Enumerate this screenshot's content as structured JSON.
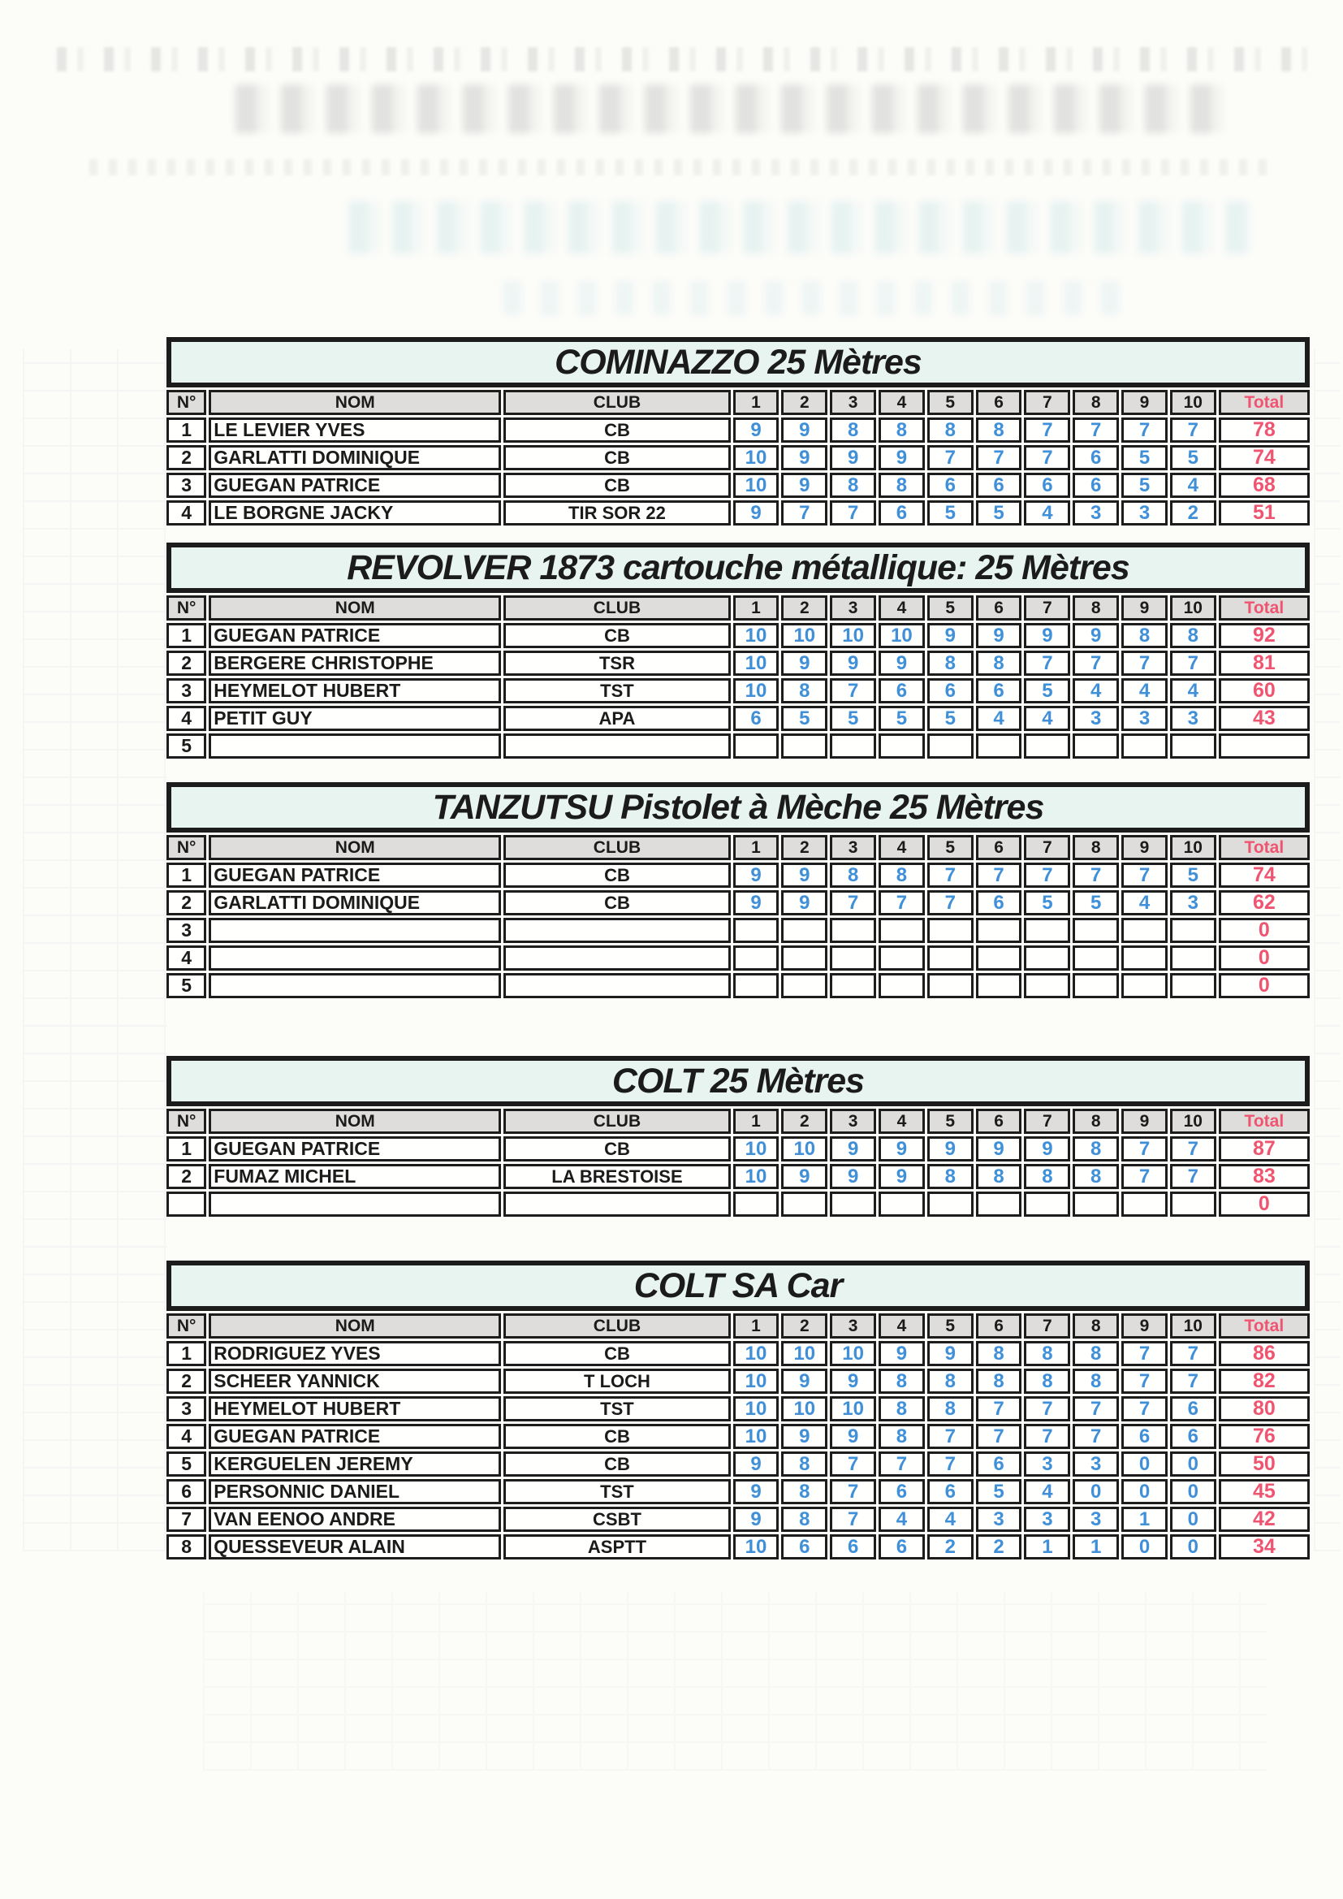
{
  "document": {
    "kind": "scanned shooting results sheet"
  },
  "colors": {
    "score_blue": "#3f90d8",
    "total_rose": "#ef5570",
    "title_band_bg": "#e7f4f0",
    "header_bg": "#dedddb",
    "grid_border": "#1d1d1d"
  },
  "columns": {
    "num": "N°",
    "name": "NOM",
    "club": "CLUB",
    "shots": [
      "1",
      "2",
      "3",
      "4",
      "5",
      "6",
      "7",
      "8",
      "9",
      "10"
    ],
    "total": "Total"
  },
  "tables": [
    {
      "title": "COMINAZZO 25 Mètres",
      "rows": [
        {
          "num": "1",
          "name": "LE LEVIER YVES",
          "club": "CB",
          "shots": [
            9,
            9,
            8,
            8,
            8,
            8,
            7,
            7,
            7,
            7
          ],
          "total": 78
        },
        {
          "num": "2",
          "name": "GARLATTI DOMINIQUE",
          "club": "CB",
          "shots": [
            10,
            9,
            9,
            9,
            7,
            7,
            7,
            6,
            5,
            5
          ],
          "total": 74
        },
        {
          "num": "3",
          "name": "GUEGAN PATRICE",
          "club": "CB",
          "shots": [
            10,
            9,
            8,
            8,
            6,
            6,
            6,
            6,
            5,
            4
          ],
          "total": 68
        },
        {
          "num": "4",
          "name": "LE BORGNE JACKY",
          "club": "TIR SOR 22",
          "shots": [
            9,
            7,
            7,
            6,
            5,
            5,
            4,
            3,
            3,
            2
          ],
          "total": 51
        }
      ]
    },
    {
      "title": "REVOLVER 1873 cartouche métallique: 25 Mètres",
      "rows": [
        {
          "num": "1",
          "name": "GUEGAN PATRICE",
          "club": "CB",
          "shots": [
            10,
            10,
            10,
            10,
            9,
            9,
            9,
            9,
            8,
            8
          ],
          "total": 92
        },
        {
          "num": "2",
          "name": "BERGERE CHRISTOPHE",
          "club": "TSR",
          "shots": [
            10,
            9,
            9,
            9,
            8,
            8,
            7,
            7,
            7,
            7
          ],
          "total": 81
        },
        {
          "num": "3",
          "name": "HEYMELOT HUBERT",
          "club": "TST",
          "shots": [
            10,
            8,
            7,
            6,
            6,
            6,
            5,
            4,
            4,
            4
          ],
          "total": 60
        },
        {
          "num": "4",
          "name": "PETIT GUY",
          "club": "APA",
          "shots": [
            6,
            5,
            5,
            5,
            5,
            4,
            4,
            3,
            3,
            3
          ],
          "total": 43
        },
        {
          "num": "5",
          "name": "",
          "club": "",
          "shots": [
            "",
            "",
            "",
            "",
            "",
            "",
            "",
            "",
            "",
            ""
          ],
          "total": ""
        }
      ]
    },
    {
      "title": "TANZUTSU Pistolet à Mèche 25 Mètres",
      "rows": [
        {
          "num": "1",
          "name": "GUEGAN PATRICE",
          "club": "CB",
          "shots": [
            9,
            9,
            8,
            8,
            7,
            7,
            7,
            7,
            7,
            5
          ],
          "total": 74
        },
        {
          "num": "2",
          "name": "GARLATTI DOMINIQUE",
          "club": "CB",
          "shots": [
            9,
            9,
            7,
            7,
            7,
            6,
            5,
            5,
            4,
            3
          ],
          "total": 62
        },
        {
          "num": "3",
          "name": "",
          "club": "",
          "shots": [
            "",
            "",
            "",
            "",
            "",
            "",
            "",
            "",
            "",
            ""
          ],
          "total": 0
        },
        {
          "num": "4",
          "name": "",
          "club": "",
          "shots": [
            "",
            "",
            "",
            "",
            "",
            "",
            "",
            "",
            "",
            ""
          ],
          "total": 0
        },
        {
          "num": "5",
          "name": "",
          "club": "",
          "shots": [
            "",
            "",
            "",
            "",
            "",
            "",
            "",
            "",
            "",
            ""
          ],
          "total": 0
        }
      ]
    },
    {
      "title": "COLT 25 Mètres",
      "rows": [
        {
          "num": "1",
          "name": "GUEGAN PATRICE",
          "club": "CB",
          "shots": [
            10,
            10,
            9,
            9,
            9,
            9,
            9,
            8,
            7,
            7
          ],
          "total": 87
        },
        {
          "num": "2",
          "name": "FUMAZ MICHEL",
          "club": "LA BRESTOISE",
          "shots": [
            10,
            9,
            9,
            9,
            8,
            8,
            8,
            8,
            7,
            7
          ],
          "total": 83
        },
        {
          "num": "",
          "name": "",
          "club": "",
          "shots": [
            "",
            "",
            "",
            "",
            "",
            "",
            "",
            "",
            "",
            ""
          ],
          "total": 0
        }
      ]
    },
    {
      "title": "COLT SA Car",
      "rows": [
        {
          "num": "1",
          "name": "RODRIGUEZ YVES",
          "club": "CB",
          "shots": [
            10,
            10,
            10,
            9,
            9,
            8,
            8,
            8,
            7,
            7
          ],
          "total": 86
        },
        {
          "num": "2",
          "name": "SCHEER YANNICK",
          "club": "T LOCH",
          "shots": [
            10,
            9,
            9,
            8,
            8,
            8,
            8,
            8,
            7,
            7
          ],
          "total": 82
        },
        {
          "num": "3",
          "name": "HEYMELOT HUBERT",
          "club": "TST",
          "shots": [
            10,
            10,
            10,
            8,
            8,
            7,
            7,
            7,
            7,
            6
          ],
          "total": 80
        },
        {
          "num": "4",
          "name": "GUEGAN PATRICE",
          "club": "CB",
          "shots": [
            10,
            9,
            9,
            8,
            7,
            7,
            7,
            7,
            6,
            6
          ],
          "total": 76
        },
        {
          "num": "5",
          "name": "KERGUELEN JEREMY",
          "club": "CB",
          "shots": [
            9,
            8,
            7,
            7,
            7,
            6,
            3,
            3,
            0,
            0
          ],
          "total": 50
        },
        {
          "num": "6",
          "name": "PERSONNIC DANIEL",
          "club": "TST",
          "shots": [
            9,
            8,
            7,
            6,
            6,
            5,
            4,
            0,
            0,
            0
          ],
          "total": 45
        },
        {
          "num": "7",
          "name": "VAN EENOO ANDRE",
          "club": "CSBT",
          "shots": [
            9,
            8,
            7,
            4,
            4,
            3,
            3,
            3,
            1,
            0
          ],
          "total": 42
        },
        {
          "num": "8",
          "name": "QUESSEVEUR ALAIN",
          "club": "ASPTT",
          "shots": [
            10,
            6,
            6,
            6,
            2,
            2,
            1,
            1,
            0,
            0
          ],
          "total": 34
        }
      ]
    }
  ]
}
